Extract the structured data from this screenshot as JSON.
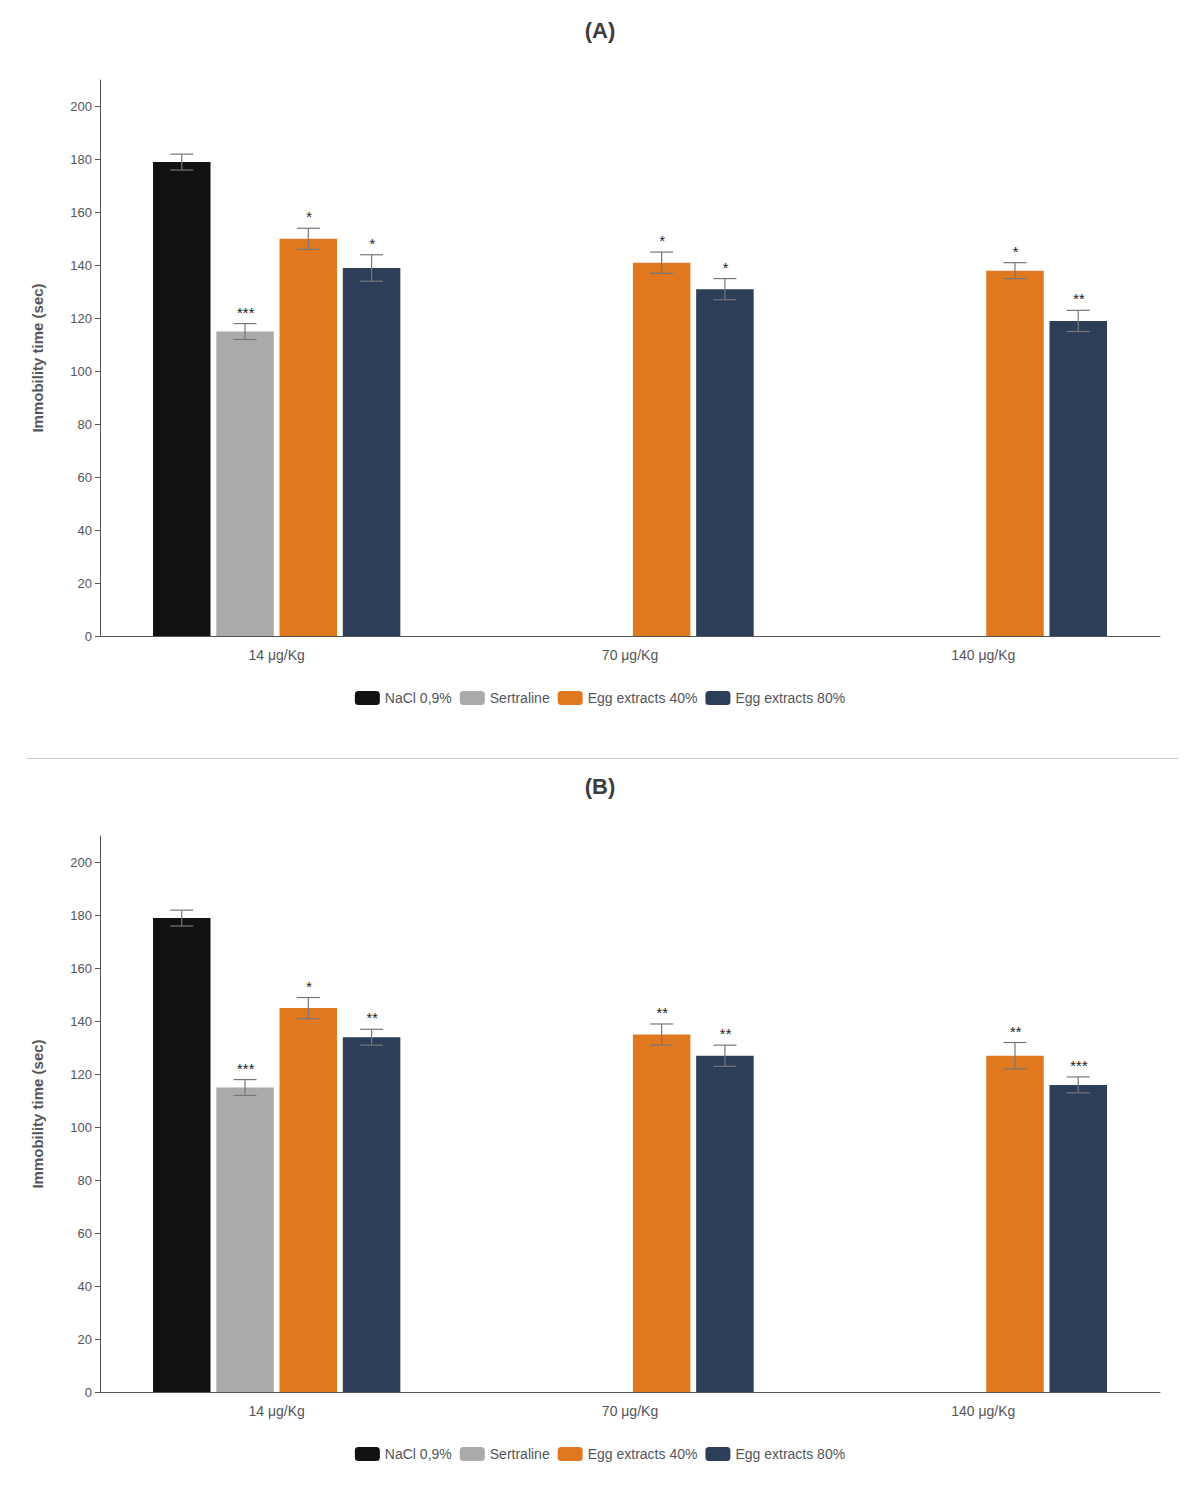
{
  "chart_data": [
    {
      "type": "bar",
      "title": "(A)",
      "ylabel": "Immobility time (sec)",
      "categories": [
        "14 μg/Kg",
        "70 μg/Kg",
        "140 μg/Kg"
      ],
      "series": [
        {
          "name": "NaCl 0,9%",
          "color": "#111111",
          "values": [
            179,
            null,
            null
          ],
          "errors": [
            3,
            null,
            null
          ]
        },
        {
          "name": "Sertraline",
          "color": "#aaaaaa",
          "values": [
            115,
            null,
            null
          ],
          "errors": [
            3,
            null,
            null
          ],
          "annotations": [
            "***",
            null,
            null
          ]
        },
        {
          "name": "Egg extracts 40%",
          "color": "#E07820",
          "values": [
            150,
            141,
            138
          ],
          "errors": [
            4,
            4,
            3
          ],
          "annotations": [
            "*",
            "*",
            "*"
          ]
        },
        {
          "name": "Egg extracts 80%",
          "color": "#2d3f58",
          "values": [
            139,
            131,
            119
          ],
          "errors": [
            5,
            4,
            4
          ],
          "annotations": [
            "*",
            "*",
            "**"
          ]
        }
      ],
      "ylim": [
        0,
        210
      ],
      "yticks": [
        0,
        20,
        40,
        60,
        80,
        100,
        120,
        140,
        160,
        180,
        200
      ],
      "grid": false,
      "legend": "bottom"
    },
    {
      "type": "bar",
      "title": "(B)",
      "ylabel": "Immobility time (sec)",
      "categories": [
        "14 μg/Kg",
        "70 μg/Kg",
        "140 μg/Kg"
      ],
      "series": [
        {
          "name": "NaCl 0,9%",
          "color": "#111111",
          "values": [
            179,
            null,
            null
          ],
          "errors": [
            3,
            null,
            null
          ]
        },
        {
          "name": "Sertraline",
          "color": "#aaaaaa",
          "values": [
            115,
            null,
            null
          ],
          "errors": [
            3,
            null,
            null
          ],
          "annotations": [
            "***",
            null,
            null
          ]
        },
        {
          "name": "Egg extracts 40%",
          "color": "#E07820",
          "values": [
            145,
            135,
            127
          ],
          "errors": [
            4,
            4,
            5
          ],
          "annotations": [
            "*",
            "**",
            "**"
          ]
        },
        {
          "name": "Egg extracts 80%",
          "color": "#2d3f58",
          "values": [
            134,
            127,
            116
          ],
          "errors": [
            3,
            4,
            3
          ],
          "annotations": [
            "**",
            "**",
            "***"
          ]
        }
      ],
      "ylim": [
        0,
        210
      ],
      "yticks": [
        0,
        20,
        40,
        60,
        80,
        100,
        120,
        140,
        160,
        180,
        200
      ],
      "grid": false,
      "legend": "bottom"
    }
  ]
}
